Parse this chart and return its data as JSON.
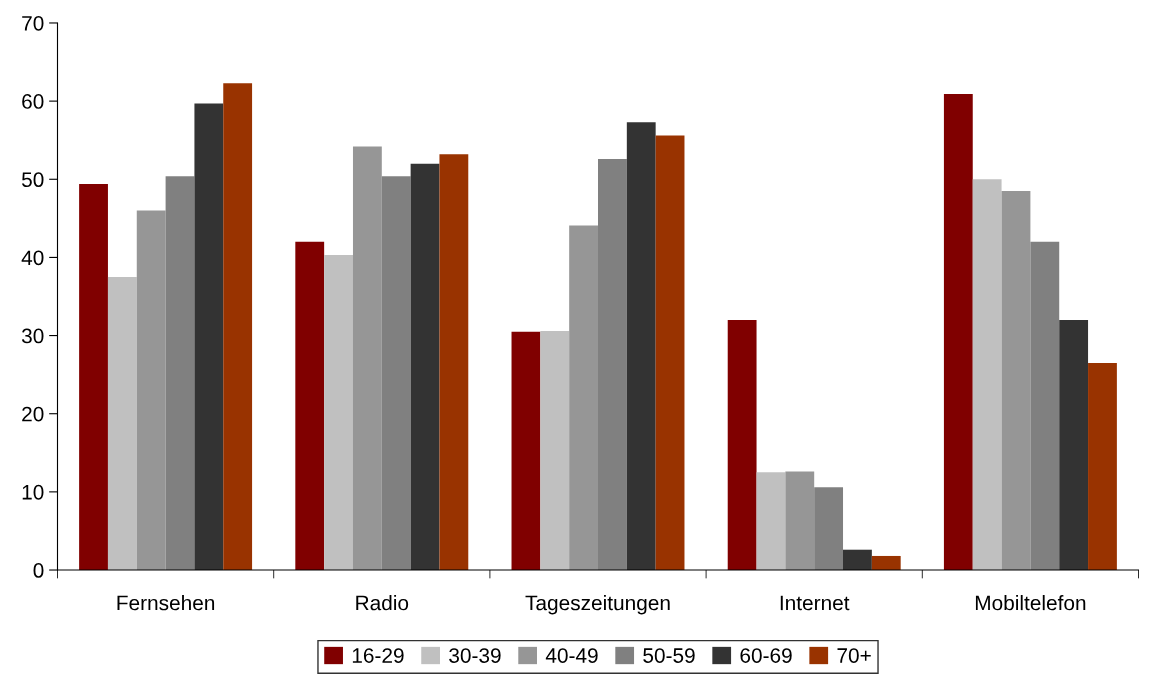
{
  "chart_data": {
    "type": "bar",
    "categories": [
      "Fernsehen",
      "Radio",
      "Tageszeitungen",
      "Internet",
      "Mobiltelefon"
    ],
    "series": [
      {
        "name": "16-29",
        "color": "#800000",
        "values": [
          49.4,
          42.0,
          30.5,
          32.0,
          60.9
        ]
      },
      {
        "name": "30-39",
        "color": "#c0c0c0",
        "values": [
          37.5,
          40.3,
          30.6,
          12.5,
          50.0
        ]
      },
      {
        "name": "40-49",
        "color": "#969696",
        "values": [
          46.0,
          54.2,
          44.1,
          12.6,
          48.5
        ]
      },
      {
        "name": "50-59",
        "color": "#808080",
        "values": [
          50.4,
          50.4,
          52.6,
          10.6,
          42.0
        ]
      },
      {
        "name": "60-69",
        "color": "#333333",
        "values": [
          59.7,
          52.0,
          57.3,
          2.6,
          32.0
        ]
      },
      {
        "name": "70+",
        "color": "#993300",
        "values": [
          62.3,
          53.2,
          55.6,
          1.8,
          26.5
        ]
      }
    ],
    "ylim": [
      0,
      70
    ],
    "yticks": [
      0,
      10,
      20,
      30,
      40,
      50,
      60,
      70
    ],
    "grid": false,
    "legend": "bottom"
  }
}
